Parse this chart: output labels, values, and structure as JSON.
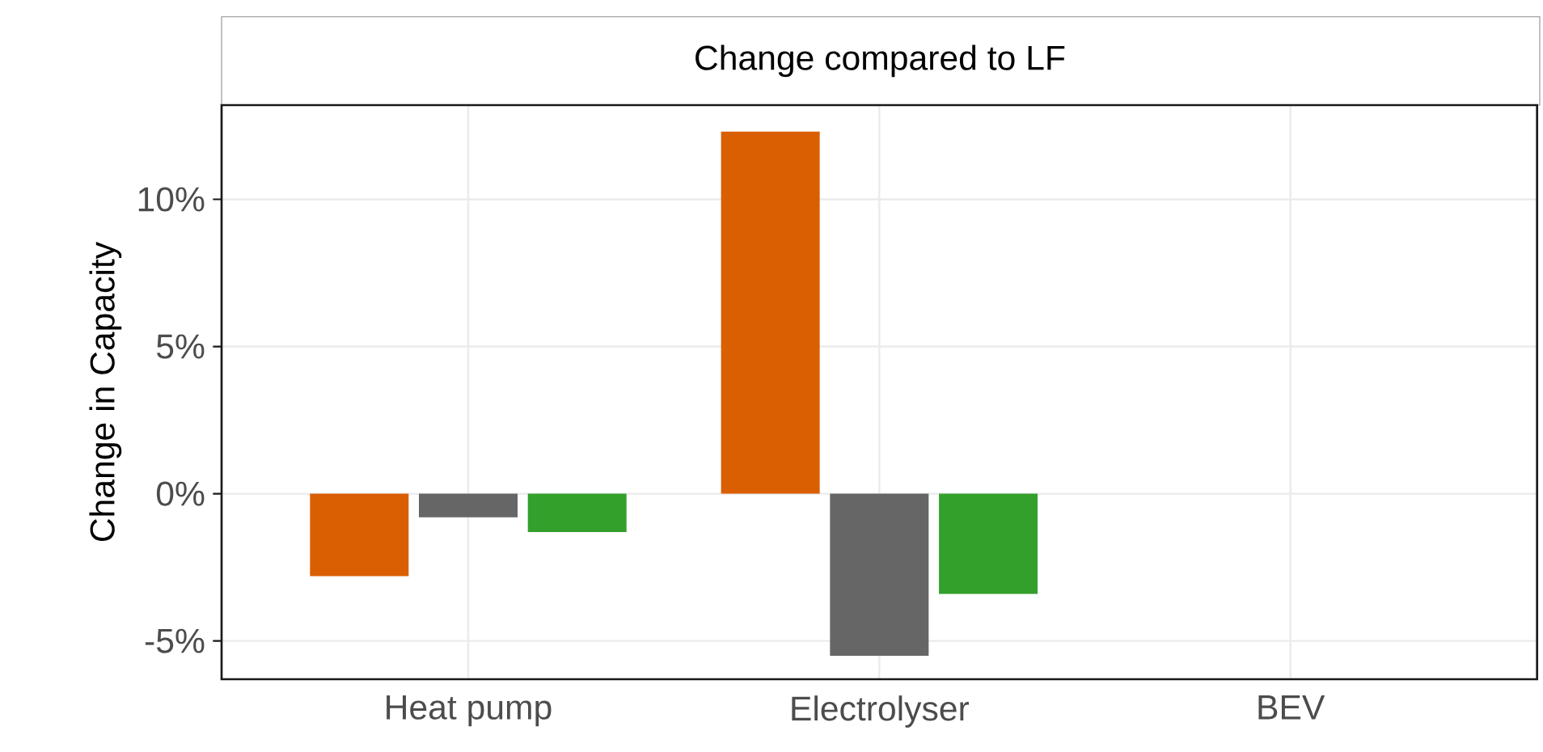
{
  "chart_data": {
    "type": "bar",
    "title": "Change compared to LF",
    "ylabel": "Change in Capacity",
    "categories": [
      "Heat pump",
      "Electrolyser",
      "BEV"
    ],
    "series": [
      {
        "color": "#d95f02",
        "values": [
          -2.8,
          12.3,
          null
        ]
      },
      {
        "color": "#666666",
        "values": [
          -0.8,
          -5.5,
          null
        ]
      },
      {
        "color": "#33a02c",
        "values": [
          -1.3,
          -3.4,
          null
        ]
      }
    ],
    "ylim": [
      -6.3,
      13.2
    ],
    "yticks": [
      {
        "value": -5,
        "label": "-5%"
      },
      {
        "value": 0,
        "label": "0%"
      },
      {
        "value": 5,
        "label": "5%"
      },
      {
        "value": 10,
        "label": "10%"
      }
    ],
    "grid": true
  }
}
